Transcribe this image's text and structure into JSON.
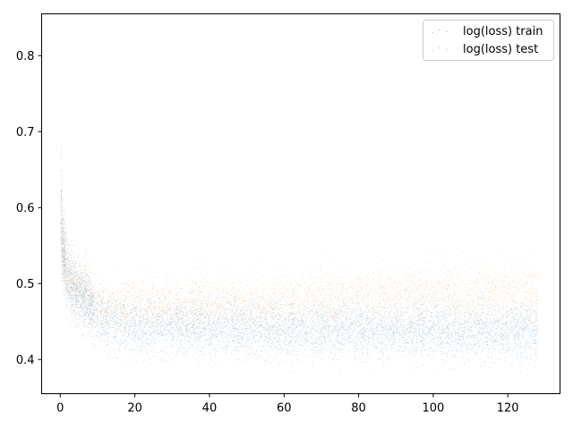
{
  "chart_data": {
    "type": "scatter",
    "title": "",
    "xlabel": "",
    "ylabel": "",
    "xlim": [
      -5,
      134
    ],
    "ylim": [
      0.355,
      0.855
    ],
    "x_ticks": [
      0,
      20,
      40,
      60,
      80,
      100,
      120
    ],
    "y_ticks": [
      0.4,
      0.5,
      0.6,
      0.7,
      0.8
    ],
    "y_tick_labels": [
      "0.4",
      "0.5",
      "0.6",
      "0.7",
      "0.8"
    ],
    "grid": false,
    "legend_position": "top-right",
    "series": [
      {
        "name": "log(loss) train",
        "color": "#1f77b4",
        "points": [
          [
            0.0,
            0.635
          ],
          [
            0.0,
            0.612
          ],
          [
            0.1,
            0.598
          ],
          [
            0.2,
            0.583
          ],
          [
            0.3,
            0.571
          ],
          [
            0.5,
            0.556
          ],
          [
            0.7,
            0.544
          ],
          [
            1.0,
            0.532
          ],
          [
            1.3,
            0.522
          ],
          [
            1.6,
            0.515
          ],
          [
            2.0,
            0.508
          ],
          [
            2.5,
            0.503
          ],
          [
            3.0,
            0.499
          ],
          [
            3.5,
            0.495
          ],
          [
            4.0,
            0.492
          ],
          [
            5.0,
            0.488
          ],
          [
            6.0,
            0.484
          ],
          [
            7.0,
            0.481
          ],
          [
            8.0,
            0.47
          ],
          [
            9.0,
            0.462
          ],
          [
            10.0,
            0.457
          ],
          [
            12.0,
            0.452
          ],
          [
            15.0,
            0.449
          ],
          [
            20.0,
            0.446
          ],
          [
            25.0,
            0.445
          ],
          [
            30.0,
            0.444
          ],
          [
            40.0,
            0.443
          ],
          [
            50.0,
            0.442
          ],
          [
            60.0,
            0.441
          ],
          [
            70.0,
            0.44
          ],
          [
            80.0,
            0.44
          ],
          [
            90.0,
            0.439
          ],
          [
            100.0,
            0.439
          ],
          [
            110.0,
            0.438
          ],
          [
            120.0,
            0.438
          ],
          [
            128.0,
            0.437
          ]
        ],
        "spread": [
          [
            0.0,
            0.055
          ],
          [
            1.0,
            0.04
          ],
          [
            3.0,
            0.035
          ],
          [
            8.0,
            0.033
          ],
          [
            10.0,
            0.035
          ],
          [
            20.0,
            0.034
          ],
          [
            60.0,
            0.033
          ],
          [
            128.0,
            0.032
          ]
        ]
      },
      {
        "name": "log(loss) test",
        "color": "#ff7f0e",
        "points": [
          [
            0.0,
            0.64
          ],
          [
            0.0,
            0.615
          ],
          [
            0.1,
            0.6
          ],
          [
            0.2,
            0.585
          ],
          [
            0.3,
            0.573
          ],
          [
            0.5,
            0.558
          ],
          [
            0.7,
            0.546
          ],
          [
            1.0,
            0.534
          ],
          [
            1.3,
            0.525
          ],
          [
            1.6,
            0.518
          ],
          [
            2.0,
            0.512
          ],
          [
            2.5,
            0.507
          ],
          [
            3.0,
            0.503
          ],
          [
            3.5,
            0.5
          ],
          [
            4.0,
            0.497
          ],
          [
            5.0,
            0.494
          ],
          [
            6.0,
            0.491
          ],
          [
            7.0,
            0.489
          ],
          [
            8.0,
            0.48
          ],
          [
            9.0,
            0.474
          ],
          [
            10.0,
            0.47
          ],
          [
            12.0,
            0.467
          ],
          [
            15.0,
            0.466
          ],
          [
            20.0,
            0.466
          ],
          [
            25.0,
            0.467
          ],
          [
            30.0,
            0.468
          ],
          [
            40.0,
            0.47
          ],
          [
            50.0,
            0.472
          ],
          [
            60.0,
            0.474
          ],
          [
            70.0,
            0.476
          ],
          [
            80.0,
            0.478
          ],
          [
            90.0,
            0.48
          ],
          [
            100.0,
            0.482
          ],
          [
            110.0,
            0.484
          ],
          [
            120.0,
            0.486
          ],
          [
            128.0,
            0.487
          ]
        ],
        "spread": [
          [
            0.0,
            0.055
          ],
          [
            1.0,
            0.04
          ],
          [
            3.0,
            0.035
          ],
          [
            8.0,
            0.033
          ],
          [
            10.0,
            0.034
          ],
          [
            20.0,
            0.035
          ],
          [
            60.0,
            0.037
          ],
          [
            128.0,
            0.038
          ]
        ]
      }
    ]
  }
}
